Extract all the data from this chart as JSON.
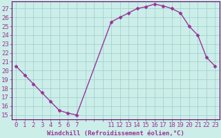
{
  "x": [
    0,
    1,
    2,
    3,
    4,
    5,
    6,
    7,
    11,
    12,
    13,
    14,
    15,
    16,
    17,
    18,
    19,
    20,
    21,
    22,
    23
  ],
  "y": [
    20.5,
    19.5,
    18.5,
    17.5,
    16.5,
    15.5,
    15.2,
    15.0,
    25.5,
    26.0,
    26.5,
    27.0,
    27.2,
    27.5,
    27.3,
    27.0,
    26.5,
    25.0,
    24.0,
    21.5,
    20.5
  ],
  "line_color": "#993399",
  "bg_color": "#cceee8",
  "grid_color": "#99cccc",
  "xlabel": "Windchill (Refroidissement éolien,°C)",
  "xlabel_color": "#993399",
  "tick_color": "#993399",
  "axis_line_color": "#660066",
  "ylabel_ticks": [
    15,
    16,
    17,
    18,
    19,
    20,
    21,
    22,
    23,
    24,
    25,
    26,
    27
  ],
  "ylim": [
    14.5,
    27.8
  ],
  "xlim": [
    -0.5,
    23.5
  ],
  "marker_size": 2.5,
  "line_width": 1.0,
  "font_size": 6.5
}
